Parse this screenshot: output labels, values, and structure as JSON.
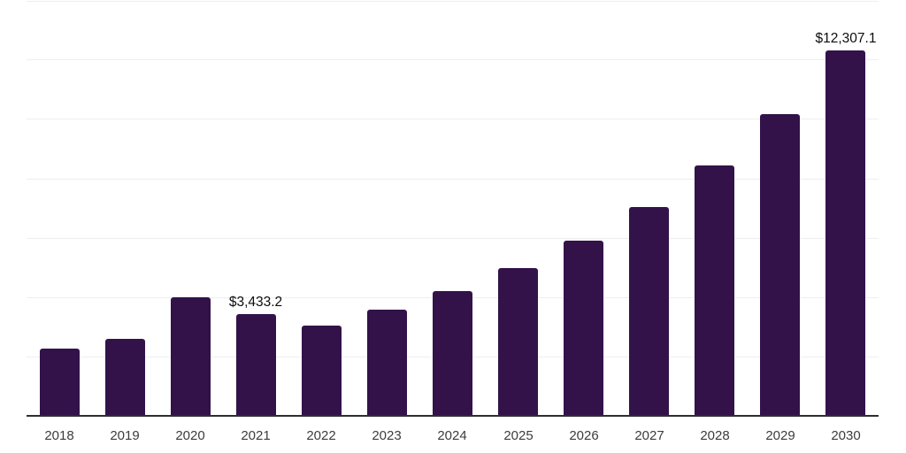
{
  "chart_data": {
    "type": "bar",
    "title": "",
    "xlabel": "",
    "ylabel": "",
    "categories": [
      "2018",
      "2019",
      "2020",
      "2021",
      "2022",
      "2023",
      "2024",
      "2025",
      "2026",
      "2027",
      "2028",
      "2029",
      "2030"
    ],
    "values": [
      2260,
      2600,
      3990,
      3433.2,
      3040,
      3575,
      4200,
      4975,
      5900,
      7030,
      8430,
      10160,
      12307.1
    ],
    "ylim": [
      0,
      14000
    ],
    "gridline_step": 2000,
    "grid": true,
    "legend": false,
    "y_axis_labels_visible": false,
    "annotations": [
      {
        "category": "2021",
        "label": "$3,433.2"
      },
      {
        "category": "2030",
        "label": "$12,307.1"
      }
    ],
    "colors": {
      "bar": "#33124a",
      "axis_line": "#2e2e2e",
      "gridline": "#eeeef1",
      "tick_label": "#3c3c3c",
      "annotation": "#0d0d0d",
      "background": "#ffffff"
    }
  }
}
